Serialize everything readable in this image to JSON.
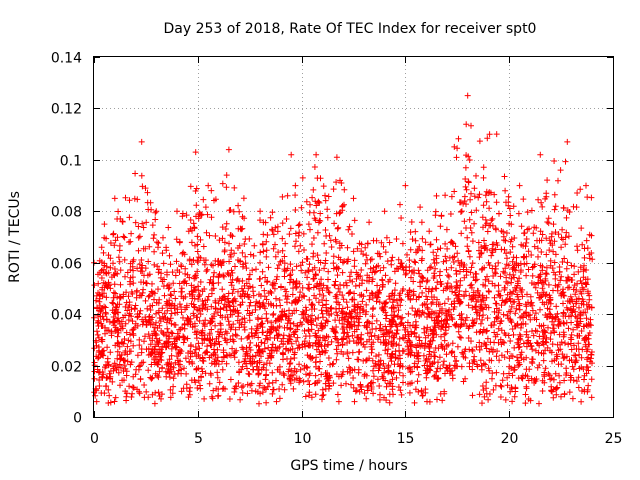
{
  "chart_data": {
    "type": "scatter",
    "title": "Day 253 of 2018, Rate Of TEC Index for receiver spt0",
    "xlabel": "GPS time / hours",
    "ylabel": "ROTI / TECUs",
    "xlim": [
      0,
      25
    ],
    "ylim": [
      0,
      0.14
    ],
    "xticks": [
      0,
      5,
      10,
      15,
      20,
      25
    ],
    "xtick_labels": [
      "0",
      "5",
      "10",
      "15",
      "20",
      "25"
    ],
    "yticks": [
      0,
      0.02,
      0.04,
      0.06,
      0.08,
      0.1,
      0.12,
      0.14
    ],
    "ytick_labels": [
      "0",
      "0.02",
      "0.04",
      "0.06",
      "0.08",
      "0.1",
      "0.12",
      "0.14"
    ],
    "grid": true,
    "marker": "plus",
    "series": [
      {
        "name": "ROTI",
        "color": "#ff0000",
        "x_range_hours": [
          0,
          24
        ],
        "typical_range": [
          0.005,
          0.08
        ],
        "envelope": [
          {
            "x": 0.0,
            "top": 0.06
          },
          {
            "x": 0.5,
            "top": 0.075
          },
          {
            "x": 1.0,
            "top": 0.085
          },
          {
            "x": 2.3,
            "top": 0.107
          },
          {
            "x": 3.0,
            "top": 0.08
          },
          {
            "x": 4.0,
            "top": 0.08
          },
          {
            "x": 4.9,
            "top": 0.103
          },
          {
            "x": 5.5,
            "top": 0.09
          },
          {
            "x": 6.5,
            "top": 0.104
          },
          {
            "x": 8.0,
            "top": 0.08
          },
          {
            "x": 9.5,
            "top": 0.102
          },
          {
            "x": 10.7,
            "top": 0.102
          },
          {
            "x": 11.7,
            "top": 0.101
          },
          {
            "x": 12.5,
            "top": 0.085
          },
          {
            "x": 14.0,
            "top": 0.08
          },
          {
            "x": 15.0,
            "top": 0.09
          },
          {
            "x": 16.5,
            "top": 0.086
          },
          {
            "x": 18.0,
            "top": 0.125
          },
          {
            "x": 19.4,
            "top": 0.11
          },
          {
            "x": 20.5,
            "top": 0.09
          },
          {
            "x": 21.5,
            "top": 0.102
          },
          {
            "x": 22.8,
            "top": 0.107
          },
          {
            "x": 23.7,
            "top": 0.09
          }
        ]
      }
    ]
  }
}
